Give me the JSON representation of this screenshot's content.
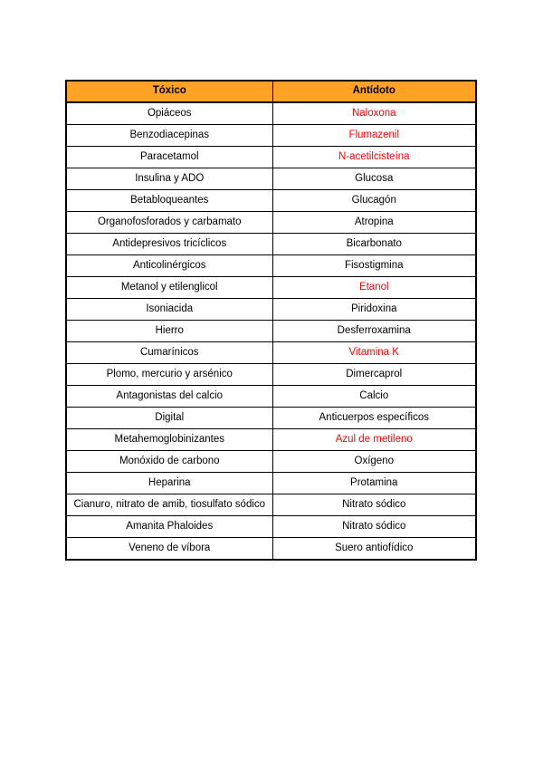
{
  "page": {
    "background": "#FFFFFF"
  },
  "table": {
    "header": {
      "toxico_label": "Tóxico",
      "antidoto_label": "Antídoto"
    },
    "colors": {
      "header_background": "#FFA326",
      "highlight_red": "#FF0000",
      "border": "#000000",
      "row_background": "#FFFFFF",
      "header_text": "#000000",
      "body_text": "#000000"
    },
    "rows": [
      {
        "toxico": "Opiáceos",
        "antidoto": "Naloxona",
        "antidoto_red": true
      },
      {
        "toxico": "Benzodiacepinas",
        "antidoto": "Flumazenil",
        "antidoto_red": true
      },
      {
        "toxico": "Paracetamol",
        "antidoto": "N-acetilcisteína",
        "antidoto_red": true
      },
      {
        "toxico": "Insulina y ADO",
        "antidoto": "Glucosa",
        "antidoto_red": false
      },
      {
        "toxico": "Betabloqueantes",
        "antidoto": "Glucagón",
        "antidoto_red": false
      },
      {
        "toxico": "Organofosforados y carbamato",
        "antidoto": "Atropina",
        "antidoto_red": false
      },
      {
        "toxico": "Antidepresivos tricíclicos",
        "antidoto": "Bicarbonato",
        "antidoto_red": false
      },
      {
        "toxico": "Anticolinérgicos",
        "antidoto": "Fisostigmina",
        "antidoto_red": false
      },
      {
        "toxico": "Metanol y etilenglicol",
        "antidoto": "Etanol",
        "antidoto_red": true
      },
      {
        "toxico": "Isoniacida",
        "antidoto": "Piridoxina",
        "antidoto_red": false
      },
      {
        "toxico": "Hierro",
        "antidoto": "Desferroxamina",
        "antidoto_red": false
      },
      {
        "toxico": "Cumarínicos",
        "antidoto": "Vitamina K",
        "antidoto_red": true
      },
      {
        "toxico": "Plomo, mercurio y arsénico",
        "antidoto": "Dimercaprol",
        "antidoto_red": false
      },
      {
        "toxico": "Antagonistas del calcio",
        "antidoto": "Calcio",
        "antidoto_red": false
      },
      {
        "toxico": "Digital",
        "antidoto": "Anticuerpos específicos",
        "antidoto_red": false
      },
      {
        "toxico": "Metahemoglobinizantes",
        "antidoto": "Azul de metileno",
        "antidoto_red": true
      },
      {
        "toxico": "Monóxido de carbono",
        "antidoto": "Oxígeno",
        "antidoto_red": false
      },
      {
        "toxico": "Heparina",
        "antidoto": "Protamina",
        "antidoto_red": false
      },
      {
        "toxico": "Cianuro, nitrato de amib, tiosulfato sódico",
        "antidoto": "Nitrato sódico",
        "antidoto_red": false
      },
      {
        "toxico": "Amanita Phaloides",
        "antidoto": "Nitrato sódico",
        "antidoto_red": false
      },
      {
        "toxico": "Veneno de víbora",
        "antidoto": "Suero antiofídico",
        "antidoto_red": false
      }
    ]
  }
}
